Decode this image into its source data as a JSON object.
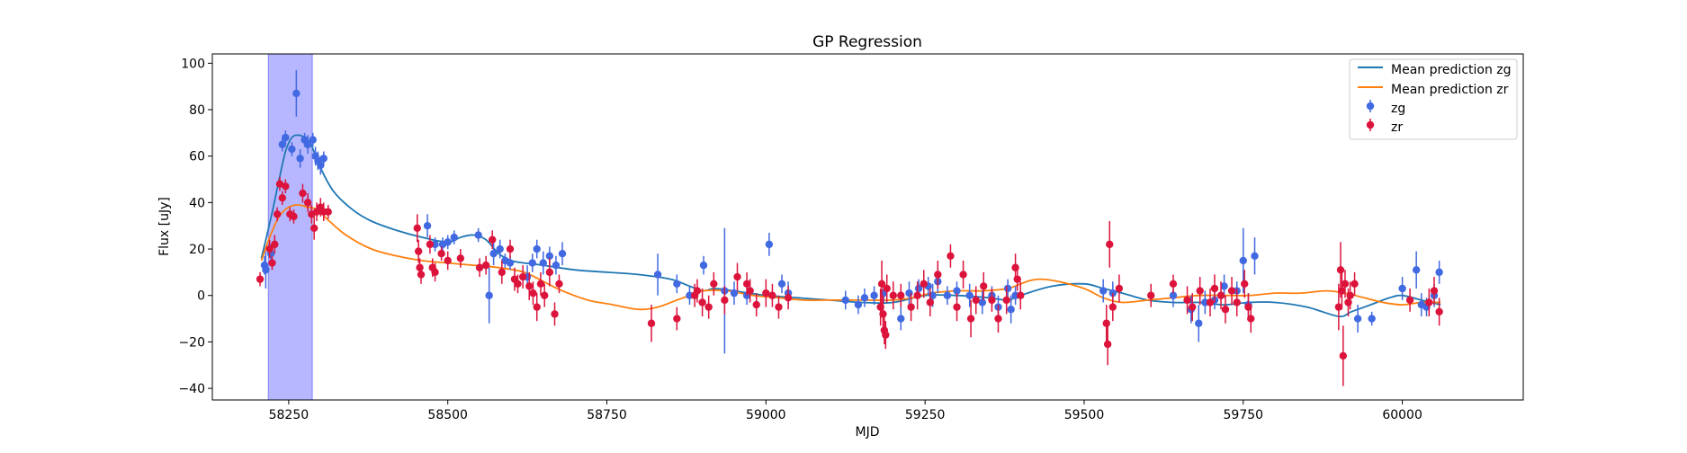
{
  "chart_data": {
    "type": "scatter",
    "title": "GP Regression",
    "xlabel": "MJD",
    "ylabel": "Flux [uJy]",
    "xlim": [
      58130,
      60190
    ],
    "ylim": [
      -45,
      104
    ],
    "xticks": [
      58250,
      58500,
      58750,
      59000,
      59250,
      59500,
      59750,
      60000
    ],
    "yticks": [
      -40,
      -20,
      0,
      20,
      40,
      60,
      80,
      100
    ],
    "xtick_labels": [
      "58250",
      "58500",
      "58750",
      "59000",
      "59250",
      "59500",
      "59750",
      "60000"
    ],
    "ytick_labels": [
      "−40",
      "−20",
      "0",
      "20",
      "40",
      "60",
      "80",
      "100"
    ],
    "grid": false,
    "legend_position": "top-right",
    "shaded_region": {
      "x_start": 58218,
      "x_end": 58287,
      "color": "#aaaaff"
    },
    "series": [
      {
        "name": "Mean prediction zg",
        "kind": "line",
        "color": "#1f77b4",
        "x": [
          58207,
          58215,
          58225,
          58235,
          58245,
          58255,
          58265,
          58275,
          58285,
          58300,
          58320,
          58350,
          58380,
          58420,
          58460,
          58500,
          58520,
          58540,
          58560,
          58580,
          58600,
          58620,
          58650,
          58700,
          58750,
          58800,
          58850,
          58880,
          58900,
          58920,
          58950,
          59000,
          59050,
          59100,
          59150,
          59200,
          59250,
          59300,
          59350,
          59380,
          59400,
          59450,
          59500,
          59530,
          59560,
          59600,
          59640,
          59680,
          59720,
          59760,
          59800,
          59850,
          59900,
          59920,
          59950,
          59980,
          60000,
          60030,
          60060
        ],
        "y": [
          16,
          25,
          37,
          50,
          62,
          68,
          69,
          68,
          65,
          55,
          45,
          37,
          32,
          28,
          25,
          23,
          25,
          26,
          24,
          18,
          15,
          14,
          13,
          11,
          10,
          9,
          7,
          4,
          2,
          3,
          2,
          0,
          -1,
          -2,
          -3,
          -3,
          0,
          0,
          -1,
          -2,
          0,
          4,
          5,
          3,
          1,
          -2,
          -3,
          -3,
          -4,
          -3,
          -3,
          -5,
          -9,
          -7,
          -4,
          -1,
          0,
          -2,
          -4
        ]
      },
      {
        "name": "Mean prediction zr",
        "kind": "line",
        "color": "#ff7f0e",
        "x": [
          58207,
          58220,
          58235,
          58250,
          58265,
          58280,
          58295,
          58310,
          58340,
          58380,
          58420,
          58460,
          58500,
          58540,
          58580,
          58620,
          58650,
          58680,
          58720,
          58760,
          58800,
          58830,
          58860,
          58880,
          58900,
          58940,
          58980,
          59020,
          59060,
          59100,
          59150,
          59200,
          59230,
          59260,
          59300,
          59340,
          59380,
          59410,
          59430,
          59460,
          59500,
          59530,
          59560,
          59600,
          59640,
          59680,
          59720,
          59760,
          59800,
          59840,
          59880,
          59910,
          59940,
          59970,
          60000,
          60030,
          60060
        ],
        "y": [
          15,
          25,
          34,
          38,
          39,
          38,
          37,
          33,
          26,
          20,
          17,
          15,
          14,
          13,
          12,
          10,
          6,
          2,
          -2,
          -4,
          -6,
          -5,
          -2,
          0,
          2,
          2,
          0,
          -1,
          -2,
          -2,
          -2,
          -2,
          -1,
          1,
          2,
          2,
          3,
          6,
          7,
          6,
          3,
          -1,
          -3,
          -2,
          -1,
          0,
          0,
          0,
          1,
          1,
          2,
          1,
          -1,
          -3,
          -4,
          -3,
          -3
        ]
      },
      {
        "name": "zg",
        "kind": "errorbar",
        "color": "#4169e1",
        "x": [
          58212,
          58214,
          58222,
          58240,
          58245,
          58255,
          58262,
          58268,
          58275,
          58280,
          58288,
          58292,
          58296,
          58300,
          58305,
          58468,
          58480,
          58492,
          58500,
          58510,
          58548,
          58565,
          58572,
          58582,
          58590,
          58598,
          58625,
          58633,
          58640,
          58650,
          58660,
          58670,
          58680,
          58830,
          58860,
          58880,
          58902,
          58935,
          58950,
          58970,
          59005,
          59025,
          59035,
          59125,
          59145,
          59155,
          59170,
          59185,
          59212,
          59225,
          59240,
          59255,
          59262,
          59270,
          59285,
          59300,
          59320,
          59340,
          59355,
          59365,
          59380,
          59385,
          59392,
          59530,
          59545,
          59640,
          59668,
          59680,
          59690,
          59705,
          59720,
          59740,
          59750,
          59758,
          59768,
          59930,
          59952,
          60000,
          60022,
          60030,
          60038,
          60050,
          60058
        ],
        "y": [
          13,
          11,
          18,
          65,
          68,
          63,
          87,
          59,
          67,
          65,
          67,
          60,
          58,
          56,
          59,
          30,
          22,
          22,
          23,
          25,
          26,
          0,
          18,
          20,
          15,
          14,
          8,
          14,
          20,
          14,
          17,
          13,
          18,
          9,
          5,
          0,
          13,
          2,
          1,
          0,
          22,
          5,
          1,
          -2,
          -4,
          -1,
          0,
          1,
          -10,
          1,
          3,
          4,
          0,
          6,
          0,
          2,
          0,
          -3,
          0,
          -5,
          3,
          -6,
          0,
          2,
          1,
          0,
          -6,
          -12,
          -3,
          -2,
          4,
          2,
          15,
          -4,
          17,
          -10,
          -10,
          3,
          11,
          -4,
          -5,
          0,
          10
        ],
        "err": [
          4,
          8,
          4,
          3,
          3,
          3,
          10,
          4,
          3,
          4,
          3,
          4,
          4,
          4,
          3,
          5,
          3,
          3,
          3,
          3,
          3,
          12,
          5,
          4,
          3,
          3,
          5,
          4,
          4,
          5,
          4,
          4,
          5,
          9,
          4,
          4,
          4,
          27,
          5,
          4,
          5,
          4,
          5,
          4,
          4,
          4,
          4,
          4,
          5,
          5,
          4,
          4,
          5,
          5,
          4,
          4,
          5,
          5,
          4,
          5,
          4,
          6,
          4,
          5,
          5,
          5,
          6,
          8,
          5,
          4,
          5,
          4,
          14,
          5,
          8,
          6,
          3,
          5,
          8,
          5,
          4,
          5,
          5
        ]
      },
      {
        "name": "zr",
        "kind": "errorbar",
        "color": "#dc143c",
        "x": [
          58205,
          58220,
          58224,
          58228,
          58232,
          58236,
          58240,
          58245,
          58252,
          58258,
          58272,
          58280,
          58286,
          58290,
          58294,
          58300,
          58305,
          58312,
          58452,
          58454,
          58456,
          58458,
          58472,
          58476,
          58480,
          58490,
          58500,
          58520,
          58550,
          58560,
          58570,
          58585,
          58598,
          58605,
          58610,
          58618,
          58628,
          58634,
          58640,
          58646,
          58652,
          58660,
          58668,
          58675,
          58820,
          58860,
          58888,
          58892,
          58900,
          58910,
          58918,
          58935,
          58955,
          58970,
          58975,
          58985,
          59000,
          59010,
          59020,
          59035,
          59180,
          59182,
          59184,
          59186,
          59188,
          59190,
          59200,
          59212,
          59228,
          59238,
          59248,
          59258,
          59270,
          59290,
          59300,
          59310,
          59322,
          59330,
          59342,
          59355,
          59365,
          59378,
          59392,
          59395,
          59400,
          59535,
          59537,
          59540,
          59545,
          59555,
          59605,
          59640,
          59662,
          59670,
          59682,
          59698,
          59705,
          59715,
          59722,
          59732,
          59740,
          59752,
          59758,
          59762,
          59900,
          59903,
          59905,
          59907,
          59910,
          59915,
          59918,
          59925,
          60012,
          60042,
          60050,
          60058
        ],
        "y": [
          7,
          20,
          14,
          22,
          35,
          48,
          42,
          47,
          35,
          34,
          44,
          40,
          35,
          29,
          36,
          38,
          36,
          36,
          29,
          19,
          12,
          9,
          22,
          12,
          10,
          18,
          15,
          16,
          12,
          13,
          24,
          10,
          20,
          7,
          5,
          8,
          4,
          1,
          -5,
          5,
          0,
          10,
          -8,
          5,
          -12,
          -10,
          0,
          2,
          -3,
          -5,
          5,
          -2,
          8,
          5,
          2,
          -4,
          1,
          0,
          -5,
          -1,
          -5,
          5,
          -8,
          -15,
          -17,
          3,
          0,
          0,
          -5,
          0,
          5,
          -3,
          9,
          17,
          -5,
          9,
          -10,
          -2,
          4,
          -2,
          -10,
          -2,
          12,
          7,
          0,
          -12,
          -21,
          22,
          -5,
          3,
          0,
          5,
          -2,
          -5,
          2,
          -3,
          3,
          0,
          -6,
          2,
          -3,
          5,
          -5,
          -10,
          -5,
          11,
          2,
          -26,
          5,
          -3,
          0,
          5,
          -2,
          -3,
          2,
          -7
        ],
        "err": [
          3,
          4,
          3,
          4,
          3,
          3,
          3,
          3,
          3,
          3,
          4,
          4,
          4,
          5,
          4,
          4,
          4,
          3,
          6,
          5,
          4,
          4,
          4,
          4,
          4,
          3,
          4,
          4,
          4,
          4,
          4,
          5,
          4,
          5,
          4,
          5,
          6,
          5,
          6,
          5,
          5,
          6,
          5,
          4,
          8,
          5,
          5,
          5,
          6,
          5,
          5,
          6,
          6,
          5,
          5,
          5,
          6,
          5,
          5,
          5,
          8,
          10,
          8,
          6,
          6,
          6,
          6,
          5,
          6,
          6,
          6,
          6,
          6,
          5,
          6,
          6,
          8,
          6,
          6,
          5,
          6,
          6,
          6,
          5,
          6,
          8,
          9,
          10,
          6,
          6,
          5,
          4,
          6,
          6,
          6,
          6,
          6,
          6,
          6,
          6,
          6,
          6,
          6,
          6,
          10,
          12,
          8,
          13,
          6,
          6,
          6,
          5,
          5,
          6,
          6,
          6
        ]
      }
    ]
  }
}
